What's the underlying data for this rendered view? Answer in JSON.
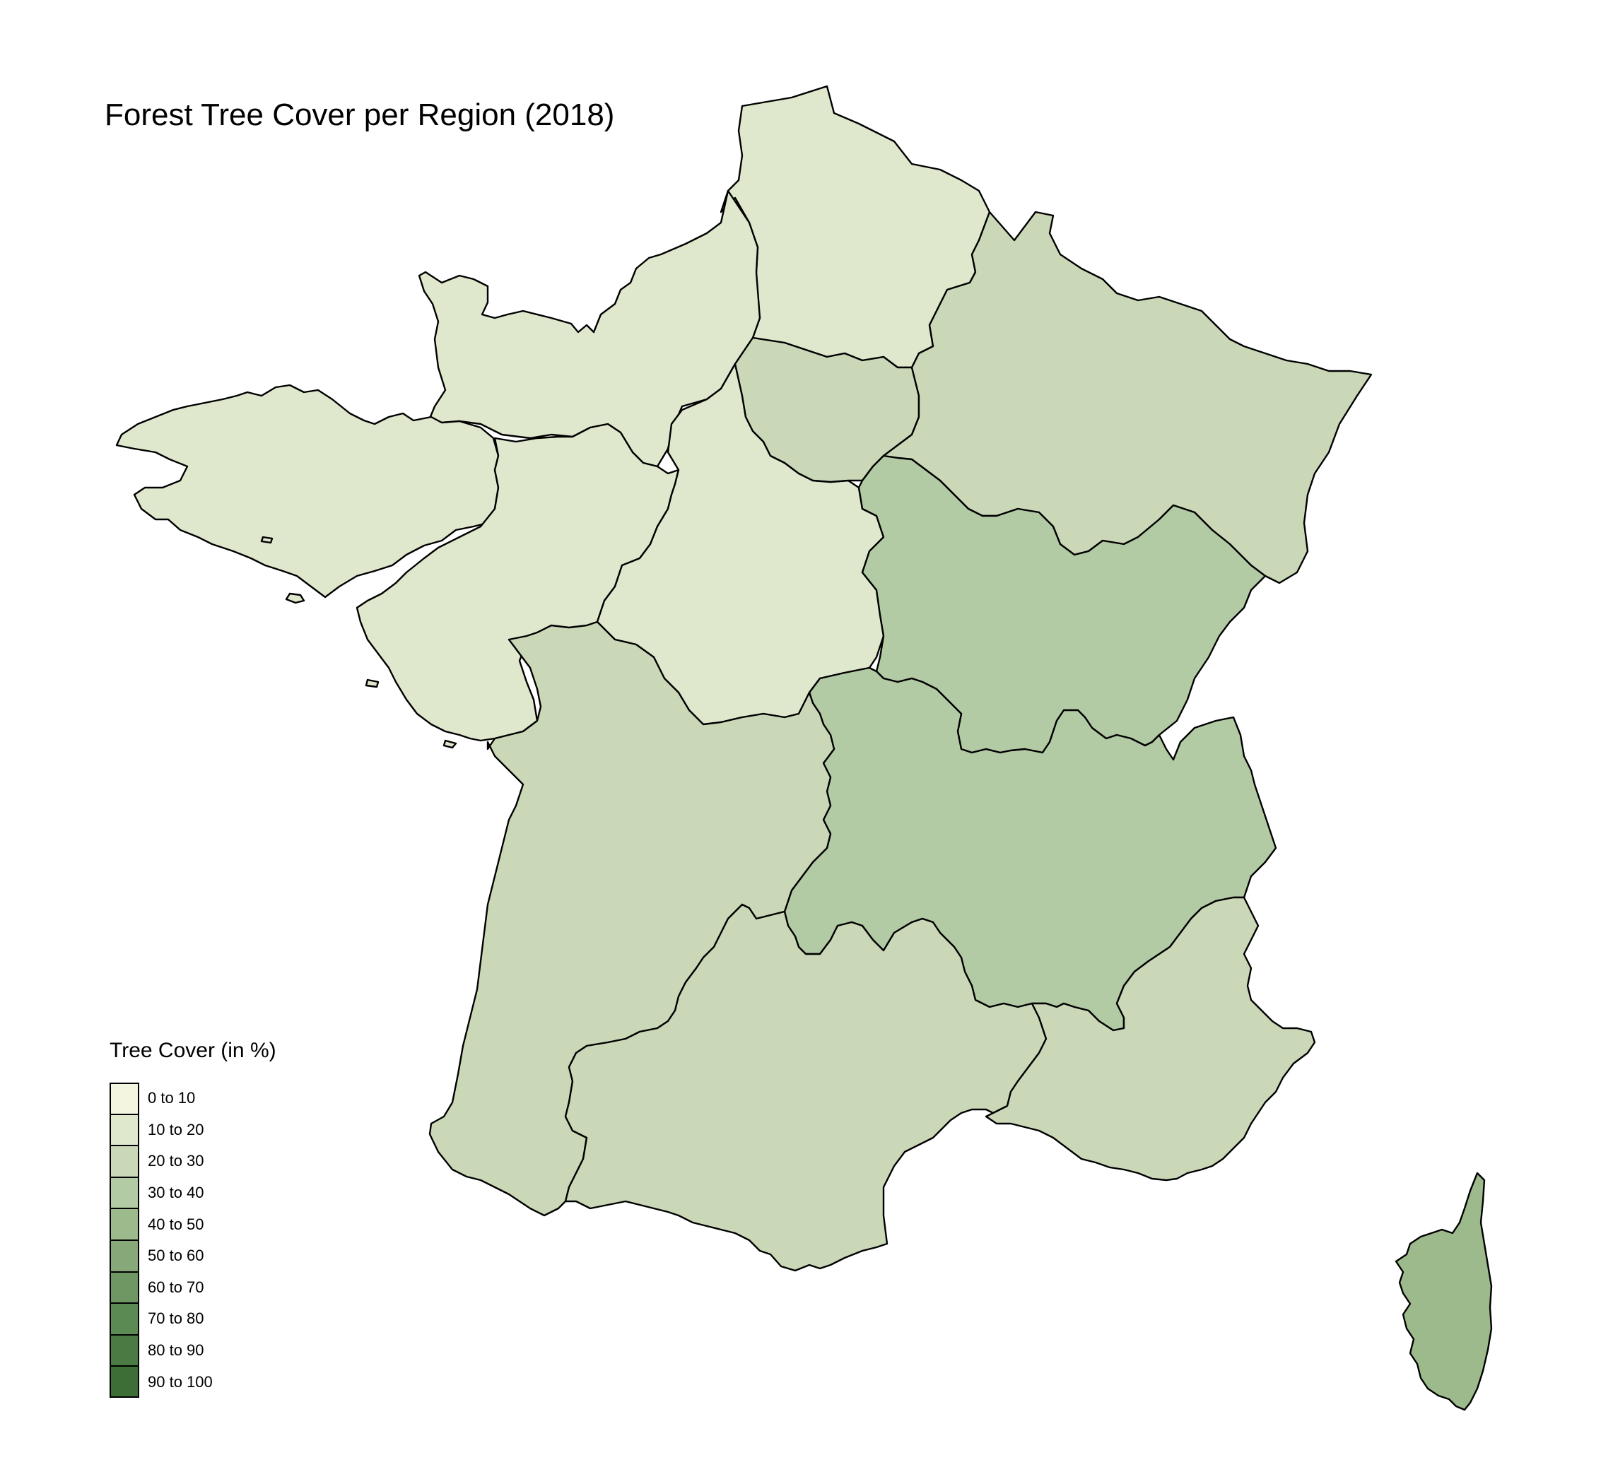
{
  "title": "Forest Tree Cover per Region (2018)",
  "legend": {
    "title": "Tree Cover (in %)",
    "bins": [
      {
        "label": "0 to 10",
        "color": "#f3f5e0"
      },
      {
        "label": "10 to 20",
        "color": "#dfe8cd"
      },
      {
        "label": "20 to 30",
        "color": "#cad8b8"
      },
      {
        "label": "30 to 40",
        "color": "#b3cba4"
      },
      {
        "label": "40 to 50",
        "color": "#9dba8c"
      },
      {
        "label": "50 to 60",
        "color": "#87a97a"
      },
      {
        "label": "60 to 70",
        "color": "#6f9764"
      },
      {
        "label": "70 to 80",
        "color": "#5b8a52"
      },
      {
        "label": "80 to 90",
        "color": "#4b7b42"
      },
      {
        "label": "90 to 100",
        "color": "#3d6e35"
      }
    ]
  },
  "regions": [
    {
      "name": "Hauts-de-France",
      "bin": "10 to 20"
    },
    {
      "name": "Normandie",
      "bin": "10 to 20"
    },
    {
      "name": "Bretagne",
      "bin": "10 to 20"
    },
    {
      "name": "Pays de la Loire",
      "bin": "10 to 20"
    },
    {
      "name": "Centre-Val de Loire",
      "bin": "10 to 20"
    },
    {
      "name": "Île-de-France",
      "bin": "20 to 30"
    },
    {
      "name": "Grand Est",
      "bin": "20 to 30"
    },
    {
      "name": "Nouvelle-Aquitaine",
      "bin": "20 to 30"
    },
    {
      "name": "Occitanie",
      "bin": "20 to 30"
    },
    {
      "name": "Provence-Alpes-Côte d'Azur",
      "bin": "20 to 30"
    },
    {
      "name": "Bourgogne-Franche-Comté",
      "bin": "30 to 40"
    },
    {
      "name": "Auvergne-Rhône-Alpes",
      "bin": "30 to 40"
    },
    {
      "name": "Corse",
      "bin": "40 to 50"
    }
  ]
}
